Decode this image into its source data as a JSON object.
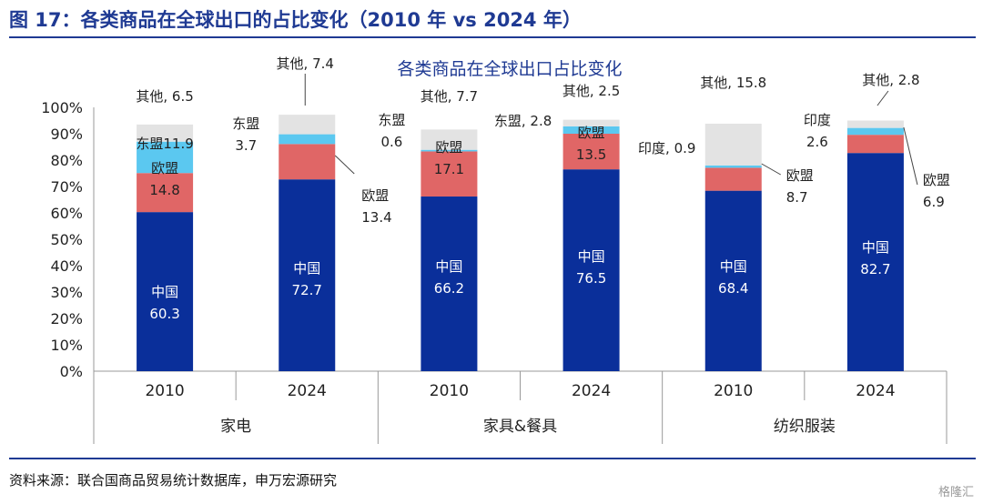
{
  "figure": {
    "title": "图 17：各类商品在全球出口的占比变化（2010 年 vs 2024 年）",
    "source": "资料来源：联合国商品贸易统计数据库，申万宏源研究",
    "watermark": "格隆汇"
  },
  "chart_data": {
    "type": "bar",
    "stacked": true,
    "title": "各类商品在全球出口占比变化",
    "ylabel": "",
    "ylim": [
      0,
      100
    ],
    "yticks": [
      "0%",
      "10%",
      "20%",
      "30%",
      "40%",
      "50%",
      "60%",
      "70%",
      "80%",
      "90%",
      "100%"
    ],
    "categories": [
      "家电",
      "家具&餐具",
      "纺织服装"
    ],
    "bars": [
      {
        "group": "家电",
        "year": "2010",
        "segments": [
          {
            "series": "中国",
            "value": 60.3,
            "label": "中国\n60.3"
          },
          {
            "series": "欧盟",
            "value": 14.8,
            "label": "欧盟\n14.8"
          },
          {
            "series": "东盟",
            "value": 11.9,
            "label": "东盟11.9"
          },
          {
            "series": "其他",
            "value": 6.5,
            "label": "其他, 6.5"
          }
        ]
      },
      {
        "group": "家电",
        "year": "2024",
        "segments": [
          {
            "series": "中国",
            "value": 72.7,
            "label": "中国\n72.7"
          },
          {
            "series": "欧盟",
            "value": 13.4,
            "label": "欧盟\n13.4"
          },
          {
            "series": "东盟",
            "value": 3.7,
            "label": "东盟\n3.7"
          },
          {
            "series": "其他",
            "value": 7.4,
            "label": "其他, 7.4"
          }
        ]
      },
      {
        "group": "家具&餐具",
        "year": "2010",
        "segments": [
          {
            "series": "中国",
            "value": 66.2,
            "label": "中国\n66.2"
          },
          {
            "series": "欧盟",
            "value": 17.1,
            "label": "欧盟\n17.1"
          },
          {
            "series": "东盟",
            "value": 0.6,
            "label": "东盟\n0.6"
          },
          {
            "series": "其他",
            "value": 7.7,
            "label": "其他, 7.7"
          }
        ]
      },
      {
        "group": "家具&餐具",
        "year": "2024",
        "segments": [
          {
            "series": "中国",
            "value": 76.5,
            "label": "中国\n76.5"
          },
          {
            "series": "欧盟",
            "value": 13.5,
            "label": "欧盟\n13.5"
          },
          {
            "series": "东盟",
            "value": 2.8,
            "label": "东盟, 2.8"
          },
          {
            "series": "其他",
            "value": 2.5,
            "label": "其他, 2.5"
          }
        ]
      },
      {
        "group": "纺织服装",
        "year": "2010",
        "segments": [
          {
            "series": "中国",
            "value": 68.4,
            "label": "中国\n68.4"
          },
          {
            "series": "欧盟",
            "value": 8.7,
            "label": "欧盟\n8.7"
          },
          {
            "series": "印度",
            "value": 0.9,
            "label": "印度, 0.9"
          },
          {
            "series": "其他",
            "value": 15.8,
            "label": "其他, 15.8"
          }
        ]
      },
      {
        "group": "纺织服装",
        "year": "2024",
        "segments": [
          {
            "series": "中国",
            "value": 82.7,
            "label": "中国\n82.7"
          },
          {
            "series": "欧盟",
            "value": 6.9,
            "label": "欧盟\n6.9"
          },
          {
            "series": "印度",
            "value": 2.6,
            "label": "印度\n2.6"
          },
          {
            "series": "其他",
            "value": 2.8,
            "label": "其他, 2.8"
          }
        ]
      }
    ],
    "colors": {
      "中国": "#0a2f9a",
      "欧盟": "#e06666",
      "东盟": "#5bc8f0",
      "印度": "#5bc8f0",
      "其他": "#e3e3e3"
    },
    "legend": "none"
  }
}
